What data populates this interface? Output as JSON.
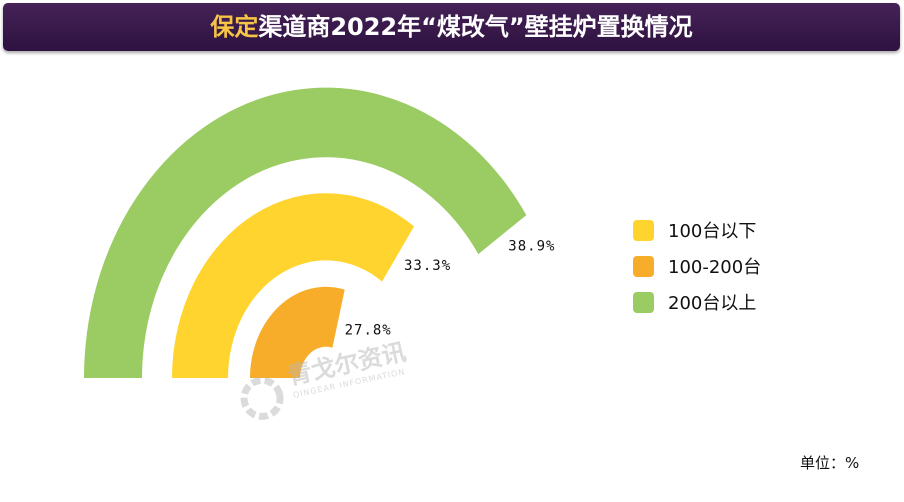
{
  "chart_data": {
    "type": "bar",
    "title_highlight": "保定",
    "title_rest": "渠道商2022年“煤改气”壁挂炉置换情况",
    "categories": [
      "100台以下",
      "100-200台",
      "200台以上"
    ],
    "values": [
      33.3,
      27.8,
      38.9
    ],
    "value_labels": [
      "33.3%",
      "27.8%",
      "38.9%"
    ],
    "colors": [
      "#ffd42f",
      "#f7ad2a",
      "#9bcb63"
    ],
    "unit_label": "单位：%"
  },
  "watermark": {
    "name_cn": "青戈尔资讯",
    "name_en": "QINGEAR INFORMATION"
  }
}
